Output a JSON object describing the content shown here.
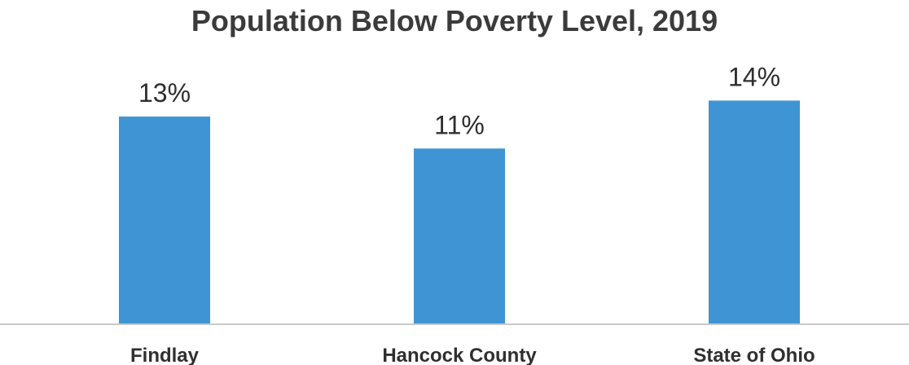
{
  "chart_data": {
    "type": "bar",
    "title": "Population Below Poverty Level, 2019",
    "categories": [
      "Findlay",
      "Hancock County",
      "State of Ohio"
    ],
    "values": [
      13,
      11,
      14
    ],
    "value_labels": [
      "13%",
      "11%",
      "14%"
    ],
    "unit": "%",
    "xlabel": "",
    "ylabel": "",
    "ylim": [
      0,
      18
    ],
    "grid": false,
    "legend": "none",
    "bar_color": "#3f95d3",
    "axis_color": "#c9c9c9"
  }
}
